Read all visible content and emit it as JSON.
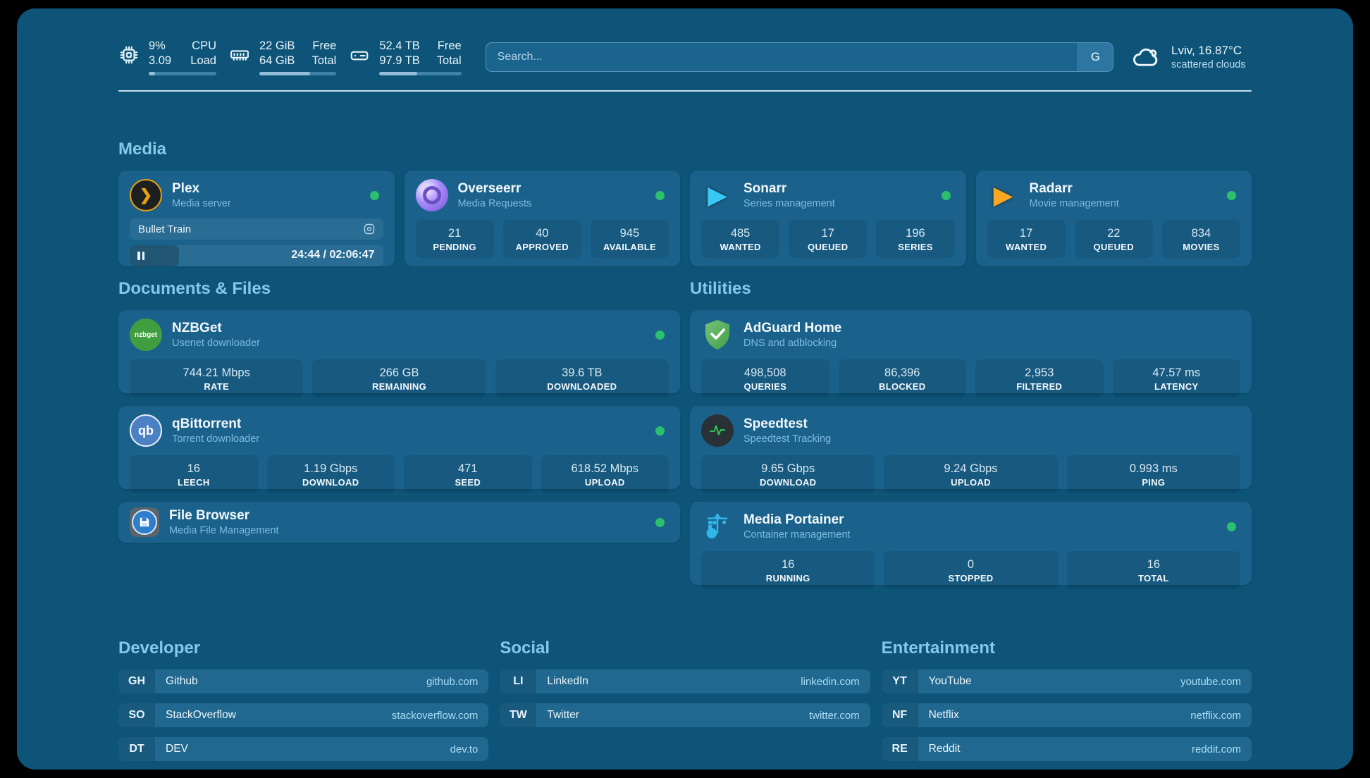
{
  "header": {
    "resources": [
      {
        "icon": "cpu-icon",
        "rows": [
          {
            "value": "9%",
            "label": "CPU"
          },
          {
            "value": "3.09",
            "label": "Load"
          }
        ],
        "percent": 9
      },
      {
        "icon": "memory-icon",
        "rows": [
          {
            "value": "22 GiB",
            "label": "Free"
          },
          {
            "value": "64 GiB",
            "label": "Total"
          }
        ],
        "percent": 66
      },
      {
        "icon": "disk-icon",
        "rows": [
          {
            "value": "52.4 TB",
            "label": "Free"
          },
          {
            "value": "97.9 TB",
            "label": "Total"
          }
        ],
        "percent": 46
      }
    ],
    "search": {
      "placeholder": "Search...",
      "provider_button": "G"
    },
    "weather": {
      "location": "Lviv, 16.87°C",
      "condition": "scattered clouds"
    }
  },
  "sections": {
    "media": "Media",
    "documents": "Documents & Files",
    "utilities": "Utilities",
    "developer": "Developer",
    "social": "Social",
    "entertainment": "Entertainment"
  },
  "cards": {
    "plex": {
      "title": "Plex",
      "subtitle": "Media server",
      "now_playing": "Bullet Train",
      "elapsed_total": "24:44 / 02:06:47",
      "progress_percent": 19.6,
      "icon_glyph": "❯"
    },
    "overseerr": {
      "title": "Overseerr",
      "subtitle": "Media Requests",
      "stats": [
        {
          "value": "21",
          "label": "PENDING"
        },
        {
          "value": "40",
          "label": "APPROVED"
        },
        {
          "value": "945",
          "label": "AVAILABLE"
        }
      ]
    },
    "sonarr": {
      "title": "Sonarr",
      "subtitle": "Series management",
      "icon_glyph": "▶",
      "stats": [
        {
          "value": "485",
          "label": "WANTED"
        },
        {
          "value": "17",
          "label": "QUEUED"
        },
        {
          "value": "196",
          "label": "SERIES"
        }
      ]
    },
    "radarr": {
      "title": "Radarr",
      "subtitle": "Movie management",
      "icon_glyph": "▶",
      "stats": [
        {
          "value": "17",
          "label": "WANTED"
        },
        {
          "value": "22",
          "label": "QUEUED"
        },
        {
          "value": "834",
          "label": "MOVIES"
        }
      ]
    },
    "nzbget": {
      "title": "NZBGet",
      "subtitle": "Usenet downloader",
      "icon_glyph": "nzbget",
      "stats": [
        {
          "value": "744.21 Mbps",
          "label": "RATE"
        },
        {
          "value": "266 GB",
          "label": "REMAINING"
        },
        {
          "value": "39.6 TB",
          "label": "DOWNLOADED"
        }
      ]
    },
    "qbittorrent": {
      "title": "qBittorrent",
      "subtitle": "Torrent downloader",
      "icon_glyph": "qb",
      "stats": [
        {
          "value": "16",
          "label": "LEECH"
        },
        {
          "value": "1.19 Gbps",
          "label": "DOWNLOAD"
        },
        {
          "value": "471",
          "label": "SEED"
        },
        {
          "value": "618.52 Mbps",
          "label": "UPLOAD"
        }
      ]
    },
    "filebrowser": {
      "title": "File Browser",
      "subtitle": "Media File Management"
    },
    "adguard": {
      "title": "AdGuard Home",
      "subtitle": "DNS and adblocking",
      "stats": [
        {
          "value": "498,508",
          "label": "QUERIES"
        },
        {
          "value": "86,396",
          "label": "BLOCKED"
        },
        {
          "value": "2,953",
          "label": "FILTERED"
        },
        {
          "value": "47.57 ms",
          "label": "LATENCY"
        }
      ]
    },
    "speedtest": {
      "title": "Speedtest",
      "subtitle": "Speedtest Tracking",
      "stats": [
        {
          "value": "9.65 Gbps",
          "label": "DOWNLOAD"
        },
        {
          "value": "9.24 Gbps",
          "label": "UPLOAD"
        },
        {
          "value": "0.993 ms",
          "label": "PING"
        }
      ]
    },
    "portainer": {
      "title": "Media Portainer",
      "subtitle": "Container management",
      "stats": [
        {
          "value": "16",
          "label": "RUNNING"
        },
        {
          "value": "0",
          "label": "STOPPED"
        },
        {
          "value": "16",
          "label": "TOTAL"
        }
      ]
    }
  },
  "bookmarks": {
    "developer": [
      {
        "abbr": "GH",
        "name": "Github",
        "url": "github.com"
      },
      {
        "abbr": "SO",
        "name": "StackOverflow",
        "url": "stackoverflow.com"
      },
      {
        "abbr": "DT",
        "name": "DEV",
        "url": "dev.to"
      }
    ],
    "social": [
      {
        "abbr": "LI",
        "name": "LinkedIn",
        "url": "linkedin.com"
      },
      {
        "abbr": "TW",
        "name": "Twitter",
        "url": "twitter.com"
      }
    ],
    "entertainment": [
      {
        "abbr": "YT",
        "name": "YouTube",
        "url": "youtube.com"
      },
      {
        "abbr": "NF",
        "name": "Netflix",
        "url": "netflix.com"
      },
      {
        "abbr": "RE",
        "name": "Reddit",
        "url": "reddit.com"
      }
    ]
  },
  "colors": {
    "page_bg": "#0d5478",
    "card_bg": "#1a628c",
    "heading_accent": "#86c8ea",
    "subtitle": "#7dbbdf",
    "status_online": "#2ac06d",
    "url_text": "#a9ddf5",
    "plex_brand": "#e5a00d",
    "sonarr_brand": "#38c8f4",
    "radarr_brand": "#f5a623",
    "nzbget_brand": "#3f9e3f",
    "qbittorrent_brand": "#4b80c4",
    "portainer_brand": "#2fb7e8",
    "adguard_brand": "#4aa856",
    "speedtest_pulse": "#30d158"
  }
}
